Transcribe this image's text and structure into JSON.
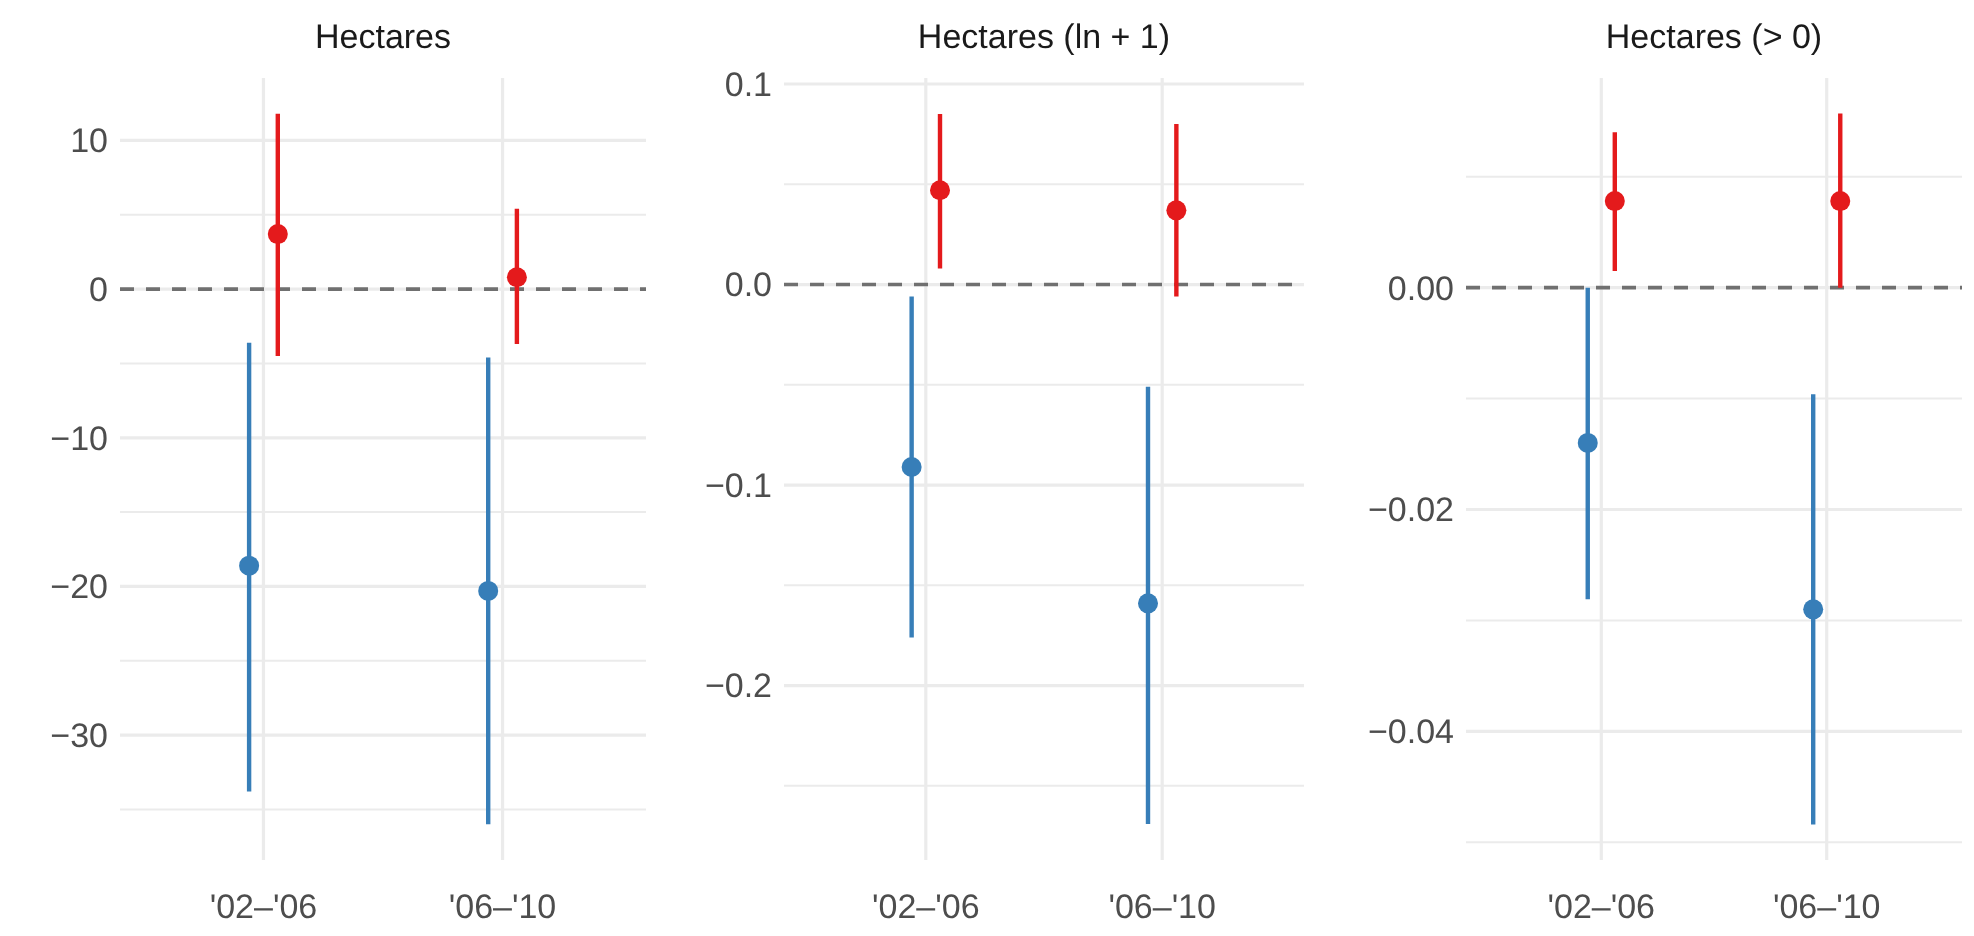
{
  "chart_data": [
    {
      "type": "scatter",
      "title": "Hectares",
      "categories": [
        "'02–'06",
        "'06–'10"
      ],
      "marker": "circle",
      "grid": true,
      "ylim": [
        -38.4,
        14.2
      ],
      "yticks": [
        {
          "value": -35,
          "label": null
        },
        {
          "value": -30,
          "label": "−30"
        },
        {
          "value": -25,
          "label": null
        },
        {
          "value": -20,
          "label": "−20"
        },
        {
          "value": -15,
          "label": null
        },
        {
          "value": -10,
          "label": "−10"
        },
        {
          "value": -5,
          "label": null
        },
        0,
        {
          "value": 5,
          "label": null
        },
        10
      ],
      "ref_lines": [
        {
          "axis": "y",
          "value": 0,
          "line_style": "dashed",
          "color": "#707070"
        }
      ],
      "series": [
        {
          "color": "#377eb8",
          "values": [
            -18.6,
            -20.3
          ],
          "errors": [
            [
              -33.8,
              -3.6
            ],
            [
              -36,
              -4.6
            ]
          ]
        },
        {
          "color": "#e41a1c",
          "values": [
            3.7,
            0.8
          ],
          "errors": [
            [
              -4.5,
              11.8
            ],
            [
              -3.7,
              5.4
            ]
          ]
        }
      ]
    },
    {
      "type": "scatter",
      "title": "Hectares (ln + 1)",
      "categories": [
        "'02–'06",
        "'06–'10"
      ],
      "marker": "circle",
      "grid": true,
      "ylim": [
        -0.287,
        0.103
      ],
      "yticks": [
        {
          "value": -0.25,
          "label": null
        },
        {
          "value": -0.2,
          "label": "−0.2"
        },
        {
          "value": -0.15,
          "label": null
        },
        {
          "value": -0.1,
          "label": "−0.1"
        },
        {
          "value": -0.05,
          "label": null
        },
        {
          "value": 0,
          "label": "0.0"
        },
        {
          "value": 0.05,
          "label": null
        },
        0.1
      ],
      "ref_lines": [
        {
          "axis": "y",
          "value": 0,
          "line_style": "dashed",
          "color": "#707070"
        }
      ],
      "series": [
        {
          "color": "#377eb8",
          "values": [
            -0.091,
            -0.159
          ],
          "errors": [
            [
              -0.176,
              -0.006
            ],
            [
              -0.269,
              -0.051
            ]
          ]
        },
        {
          "color": "#e41a1c",
          "values": [
            0.047,
            0.037
          ],
          "errors": [
            [
              0.008,
              0.085
            ],
            [
              -0.006,
              0.08
            ]
          ]
        }
      ]
    },
    {
      "type": "scatter",
      "title": "Hectares (> 0)",
      "categories": [
        "'02–'06",
        "'06–'10"
      ],
      "marker": "circle",
      "grid": true,
      "ylim": [
        -0.0516,
        0.0189
      ],
      "yticks": [
        {
          "value": -0.05,
          "label": null
        },
        {
          "value": -0.04,
          "label": "−0.04"
        },
        {
          "value": -0.03,
          "label": null
        },
        {
          "value": -0.02,
          "label": "−0.02"
        },
        {
          "value": -0.01,
          "label": null
        },
        {
          "value": 0,
          "label": "0.00"
        },
        {
          "value": 0.01,
          "label": null
        }
      ],
      "ref_lines": [
        {
          "axis": "y",
          "value": 0,
          "line_style": "dashed",
          "color": "#707070"
        }
      ],
      "series": [
        {
          "color": "#377eb8",
          "values": [
            -0.014,
            -0.029
          ],
          "errors": [
            [
              -0.0281,
              0
            ],
            [
              -0.0484,
              -0.0096
            ]
          ]
        },
        {
          "color": "#e41a1c",
          "values": [
            0.0078,
            0.0078
          ],
          "errors": [
            [
              0.0015,
              0.014
            ],
            [
              0,
              0.0157
            ]
          ]
        }
      ]
    }
  ]
}
